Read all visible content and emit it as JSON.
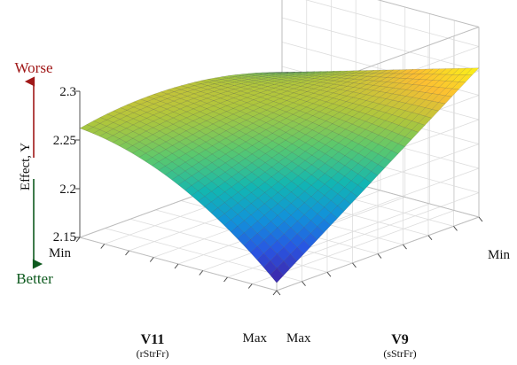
{
  "chart_data": {
    "type": "surface",
    "title": "",
    "zlabel": "Effect, Y",
    "z_ticks": [
      "2.15",
      "2.2",
      "2.25",
      "2.3"
    ],
    "zlim": [
      2.15,
      2.3
    ],
    "x_axis": {
      "name": "V11",
      "sub": "(rStrFr)",
      "min_label": "Min",
      "max_label": "Max"
    },
    "y_axis": {
      "name": "V9",
      "sub": "(sStrFr)",
      "min_label": "Min",
      "max_label": "Max"
    },
    "direction": {
      "worse": "Worse",
      "better": "Better",
      "worse_color": "#a01818",
      "better_color": "#0d5a1e"
    },
    "colormap": "parula",
    "grid": true,
    "corners": [
      {
        "v11": "Min",
        "v9": "Max",
        "y": 2.262
      },
      {
        "v11": "Max",
        "v9": "Max",
        "y": 2.158
      },
      {
        "v11": "Max",
        "v9": "Min",
        "y": 2.303
      },
      {
        "v11": "Min",
        "v9": "Min",
        "y": 2.244
      }
    ]
  }
}
